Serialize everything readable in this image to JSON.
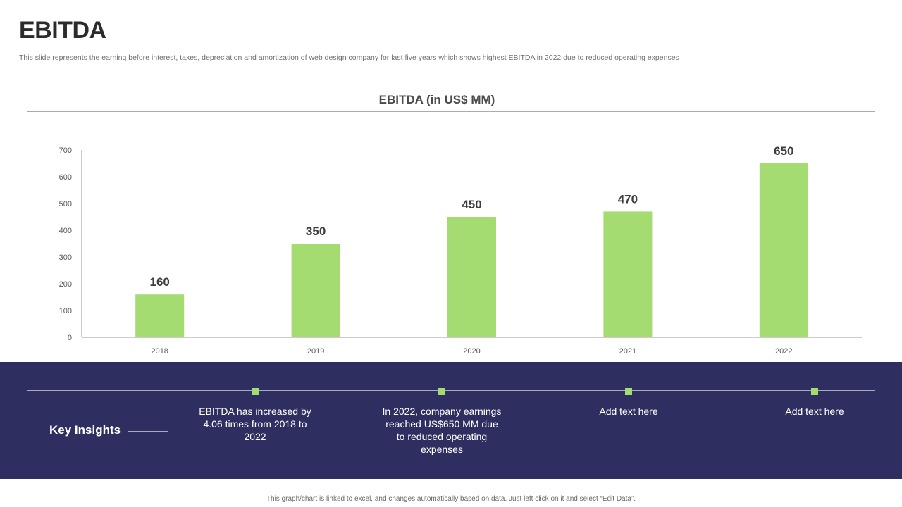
{
  "header": {
    "title": "EBITDA",
    "subtitle": "This slide represents the earning before interest, taxes, depreciation and amortization of web design company for last five years which shows highest EBITDA in 2022 due to reduced operating expenses"
  },
  "chart_data": {
    "type": "bar",
    "title": "EBITDA (in US$ MM)",
    "categories": [
      "2018",
      "2019",
      "2020",
      "2021",
      "2022"
    ],
    "values": [
      160,
      350,
      450,
      470,
      650
    ],
    "ylim": [
      0,
      700
    ],
    "yticks": [
      0,
      100,
      200,
      300,
      400,
      500,
      600,
      700
    ],
    "xlabel": "",
    "ylabel": "",
    "grid": false,
    "bar_color": "#a4dc72"
  },
  "insights": {
    "heading": "Key Insights",
    "items": [
      "EBITDA has increased by 4.06 times from 2018 to 2022",
      "In 2022, company earnings reached US$650 MM due to reduced operating expenses",
      "Add text here",
      "Add text here"
    ],
    "marker_color": "#a4dc72",
    "band_color": "#2e2e60"
  },
  "footer": {
    "note": "This graph/chart is linked to excel, and changes automatically based on data. Just left click on it and select “Edit Data”."
  }
}
